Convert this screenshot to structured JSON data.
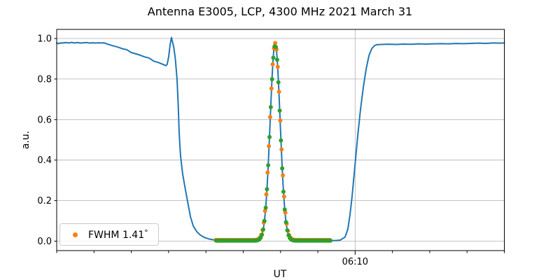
{
  "figure": {
    "title": "Antenna E3005, LCP, 4300 MHz 2021 March 31",
    "xlabel": "UT",
    "ylabel": "a.u."
  },
  "legend": {
    "label": "FWHM 1.41",
    "degree_symbol": "°",
    "marker_icon": "orange-dot",
    "marker_color": "#ff7f0e"
  },
  "colors": {
    "signal_line": "#1f77b4",
    "measured_markers": "#ff7f0e",
    "fit_markers": "#2ca02c",
    "grid": "#b0b0b0",
    "spine": "#000000",
    "background": "#ffffff"
  },
  "chart_data": {
    "type": "line",
    "title": "Antenna E3005, LCP, 4300 MHz 2021 March 31",
    "xlabel": "UT",
    "ylabel": "a.u.",
    "x_axis": {
      "unit": "minutes, axis spans 60 min ending 20 min after the labeled tick",
      "range_min": [
        0,
        60
      ],
      "minor_ticks_min": [
        0,
        5,
        10,
        15,
        20,
        25,
        30,
        35,
        45,
        50,
        55,
        60
      ],
      "major_ticks": [
        {
          "pos_min": 40,
          "label": "06:10"
        }
      ]
    },
    "y_axis": {
      "range": [
        -0.047,
        1.045
      ],
      "ticks": [
        "0.0",
        "0.2",
        "0.4",
        "0.6",
        "0.8",
        "1.0"
      ],
      "tick_values": [
        0.0,
        0.2,
        0.4,
        0.6,
        0.8,
        1.0
      ]
    },
    "grid": {
      "horizontal_on_yticks": true,
      "vertical_on_major_xticks": true
    },
    "legend": {
      "label": "FWHM 1.41°",
      "position": "lower-left"
    },
    "series": [
      {
        "name": "antenna-signal",
        "style": "line",
        "color": "#1f77b4",
        "width": 2,
        "points_pre_peak": [
          [
            0.0,
            0.979
          ],
          [
            0.2,
            0.9745
          ],
          [
            0.5,
            0.978
          ],
          [
            0.8,
            0.9775
          ],
          [
            1.2,
            0.98
          ],
          [
            1.6,
            0.978
          ],
          [
            2.0,
            0.9805
          ],
          [
            2.4,
            0.978
          ],
          [
            2.8,
            0.98
          ],
          [
            3.2,
            0.9775
          ],
          [
            3.6,
            0.979
          ],
          [
            4.0,
            0.98
          ],
          [
            4.4,
            0.9775
          ],
          [
            4.8,
            0.979
          ],
          [
            5.2,
            0.9775
          ],
          [
            5.6,
            0.979
          ],
          [
            6.0,
            0.978
          ],
          [
            6.34,
            0.9785
          ],
          [
            7.0,
            0.97
          ],
          [
            7.6,
            0.9635
          ],
          [
            8.2,
            0.9575
          ],
          [
            8.8,
            0.9495
          ],
          [
            9.4,
            0.9445
          ],
          [
            10.0,
            0.9305
          ],
          [
            10.6,
            0.9245
          ],
          [
            11.2,
            0.9175
          ],
          [
            11.8,
            0.909
          ],
          [
            12.4,
            0.9035
          ],
          [
            13.0,
            0.8885
          ],
          [
            13.6,
            0.882
          ],
          [
            14.1,
            0.8745
          ],
          [
            14.63,
            0.866
          ],
          [
            14.8,
            0.872
          ],
          [
            15.0,
            0.908
          ],
          [
            15.2,
            0.968
          ],
          [
            15.38,
            1.005
          ],
          [
            15.48,
            0.99
          ],
          [
            15.7,
            0.955
          ],
          [
            15.9,
            0.9
          ],
          [
            16.13,
            0.8
          ],
          [
            16.3,
            0.66
          ],
          [
            16.42,
            0.53
          ],
          [
            16.6,
            0.42
          ],
          [
            16.89,
            0.33
          ],
          [
            17.27,
            0.25
          ],
          [
            17.55,
            0.195
          ],
          [
            17.93,
            0.12
          ],
          [
            18.3,
            0.075
          ],
          [
            18.77,
            0.047
          ],
          [
            19.25,
            0.03
          ],
          [
            19.81,
            0.018
          ],
          [
            20.47,
            0.01
          ],
          [
            21.13,
            0.006
          ],
          [
            21.6,
            0.0045
          ],
          [
            23.0,
            0.0035
          ],
          [
            25.0,
            0.003
          ],
          [
            27.0,
            0.0035
          ]
        ],
        "gaussian_segment": {
          "from_min": 27.0,
          "to_min": 31.9,
          "step_min": 0.05
        },
        "points_post_peak": [
          [
            31.9,
            0.003
          ],
          [
            33.0,
            0.003
          ],
          [
            35.0,
            0.003
          ],
          [
            36.7,
            0.003
          ],
          [
            37.5,
            0.0035
          ],
          [
            38.0,
            0.005
          ],
          [
            38.65,
            0.02
          ],
          [
            39.03,
            0.06
          ],
          [
            39.31,
            0.13
          ],
          [
            39.59,
            0.22
          ],
          [
            39.97,
            0.37
          ],
          [
            40.35,
            0.52
          ],
          [
            40.72,
            0.65
          ],
          [
            41.1,
            0.76
          ],
          [
            41.48,
            0.85
          ],
          [
            41.85,
            0.915
          ],
          [
            42.23,
            0.95
          ],
          [
            42.61,
            0.965
          ],
          [
            42.89,
            0.9695
          ],
          [
            43.5,
            0.9705
          ],
          [
            44.5,
            0.972
          ],
          [
            45.5,
            0.9705
          ],
          [
            46.5,
            0.9725
          ],
          [
            47.5,
            0.9715
          ],
          [
            48.5,
            0.9735
          ],
          [
            49.5,
            0.9725
          ],
          [
            50.5,
            0.9735
          ],
          [
            51.5,
            0.9745
          ],
          [
            52.5,
            0.9735
          ],
          [
            53.5,
            0.9755
          ],
          [
            54.5,
            0.9745
          ],
          [
            55.5,
            0.976
          ],
          [
            56.5,
            0.977
          ],
          [
            57.5,
            0.976
          ],
          [
            58.5,
            0.978
          ],
          [
            59.3,
            0.977
          ],
          [
            60.0,
            0.978
          ]
        ]
      },
      {
        "name": "measured-data-markers",
        "style": "scatter",
        "color": "#ff7f0e",
        "marker": "dot",
        "radius": 3,
        "x_start_min": 21.3,
        "x_end_min": 36.72,
        "x_step_min": 0.17,
        "phase_min": 0.0,
        "gaussian": {
          "center_min": 29.28,
          "sigma_min": 0.69,
          "amplitude": 0.972,
          "baseline": 0.0055
        }
      },
      {
        "name": "gaussian-fit-markers",
        "style": "scatter",
        "color": "#2ca02c",
        "marker": "dot",
        "radius": 3,
        "x_start_min": 21.3,
        "x_end_min": 36.72,
        "x_step_min": 0.17,
        "phase_min": 0.085,
        "gaussian": {
          "center_min": 29.28,
          "sigma_min": 0.67,
          "amplitude": 0.965,
          "baseline": 0.0025
        }
      }
    ],
    "line_gaussian": {
      "center_min": 29.28,
      "sigma_min": 0.67,
      "amplitude": 0.972,
      "baseline": 0.003
    },
    "fwhm_deg": 1.41
  }
}
